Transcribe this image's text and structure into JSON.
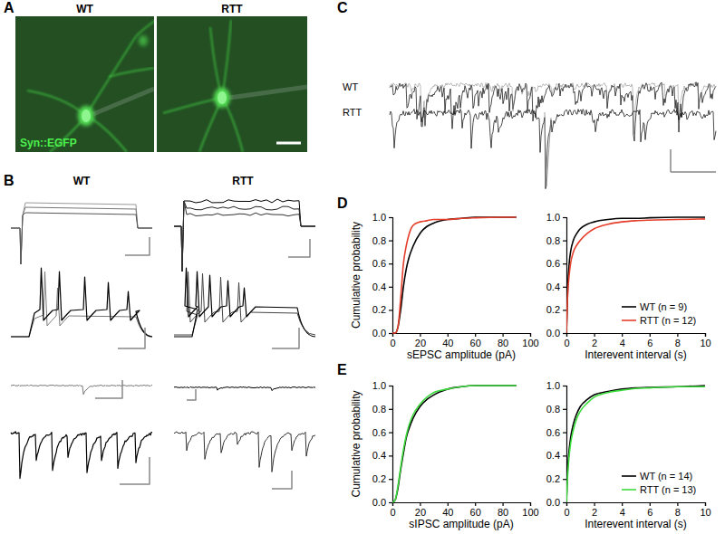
{
  "figure": {
    "panel_labels": [
      "A",
      "B",
      "C",
      "D",
      "E"
    ],
    "image_titles": [
      "WT",
      "RTT"
    ],
    "image_stain": "Syn::EGFP",
    "trace_columns": [
      "WT",
      "RTT"
    ],
    "trace_rows": [
      "WT",
      "RTT"
    ]
  },
  "chart_data": [
    {
      "type": "line",
      "x": [
        0,
        2,
        4,
        6,
        8,
        10,
        12,
        15,
        20,
        25,
        30,
        40,
        50,
        60,
        80,
        90
      ],
      "series": [
        {
          "color": "#000000",
          "values": [
            0,
            0,
            0.05,
            0.2,
            0.4,
            0.55,
            0.65,
            0.75,
            0.86,
            0.92,
            0.95,
            0.98,
            0.99,
            1,
            1,
            1
          ]
        },
        {
          "color": "#e53e2b",
          "values": [
            0,
            0,
            0.05,
            0.3,
            0.6,
            0.75,
            0.85,
            0.93,
            0.96,
            0.97,
            0.98,
            0.98,
            0.99,
            0.995,
            1,
            1
          ]
        }
      ],
      "xlim": [
        0,
        100
      ],
      "xticks": [
        0,
        20,
        40,
        60,
        80,
        100
      ],
      "ylim": [
        0,
        1
      ],
      "yticks": [
        {
          "value": 0,
          "label": "0.0"
        },
        0.2,
        0.4,
        0.6,
        0.8,
        {
          "value": 1,
          "label": "1.0"
        }
      ],
      "xlabel": "sEPSC amplitude (pA)",
      "ylabel": "Cumulative probability"
    },
    {
      "type": "line",
      "x": [
        0,
        0.1,
        0.2,
        0.3,
        0.5,
        0.75,
        1,
        1.5,
        2,
        3,
        4,
        5,
        6,
        8,
        10
      ],
      "series": [
        {
          "name": "WT (n = 9)",
          "color": "#000000",
          "values": [
            0,
            0.4,
            0.6,
            0.7,
            0.8,
            0.86,
            0.9,
            0.94,
            0.96,
            0.98,
            0.99,
            0.99,
            0.995,
            1,
            1
          ]
        },
        {
          "name": "RTT (n = 12)",
          "color": "#e53e2b",
          "values": [
            0,
            0.35,
            0.5,
            0.6,
            0.7,
            0.76,
            0.8,
            0.86,
            0.9,
            0.94,
            0.96,
            0.97,
            0.975,
            0.98,
            0.985
          ]
        }
      ],
      "xlim": [
        0,
        10
      ],
      "xticks": [
        0,
        2,
        4,
        6,
        8,
        10
      ],
      "ylim": [
        0,
        1
      ],
      "yticks": [
        {
          "value": 0,
          "label": "0.0"
        },
        0.2,
        0.4,
        0.6,
        0.8,
        {
          "value": 1,
          "label": "1.0"
        }
      ],
      "xlabel": "Interevent interval (s)",
      "legend": "lower right"
    },
    {
      "type": "line",
      "x": [
        0,
        2,
        4,
        6,
        8,
        10,
        12,
        15,
        20,
        25,
        30,
        40,
        50,
        60,
        80,
        90
      ],
      "series": [
        {
          "color": "#000000",
          "values": [
            0,
            0.02,
            0.12,
            0.28,
            0.42,
            0.55,
            0.63,
            0.72,
            0.82,
            0.88,
            0.92,
            0.97,
            0.99,
            1,
            1,
            1
          ]
        },
        {
          "color": "#3ddc3d",
          "values": [
            0,
            0.02,
            0.14,
            0.3,
            0.45,
            0.57,
            0.66,
            0.75,
            0.84,
            0.9,
            0.94,
            0.97,
            0.99,
            1,
            1,
            1
          ]
        }
      ],
      "xlim": [
        0,
        100
      ],
      "xticks": [
        0,
        20,
        40,
        60,
        80,
        100
      ],
      "ylim": [
        0,
        1
      ],
      "yticks": [
        {
          "value": 0,
          "label": "0.0"
        },
        0.2,
        0.4,
        0.6,
        0.8,
        {
          "value": 1,
          "label": "1.0"
        }
      ],
      "xlabel": "sIPSC amplitude (pA)",
      "ylabel": "Cumulative probability"
    },
    {
      "type": "line",
      "x": [
        0,
        0.1,
        0.2,
        0.3,
        0.5,
        0.75,
        1,
        1.5,
        2,
        3,
        4,
        5,
        6,
        8,
        10
      ],
      "series": [
        {
          "name": "WT (n = 14)",
          "color": "#000000",
          "values": [
            0,
            0.3,
            0.45,
            0.55,
            0.67,
            0.76,
            0.82,
            0.88,
            0.92,
            0.95,
            0.97,
            0.98,
            0.985,
            0.99,
            1
          ]
        },
        {
          "name": "RTT (n = 13)",
          "color": "#3ddc3d",
          "values": [
            0,
            0.25,
            0.4,
            0.5,
            0.62,
            0.72,
            0.78,
            0.85,
            0.9,
            0.94,
            0.96,
            0.975,
            0.98,
            0.99,
            0.99
          ]
        }
      ],
      "xlim": [
        0,
        10
      ],
      "xticks": [
        0,
        2,
        4,
        6,
        8,
        10
      ],
      "ylim": [
        0,
        1
      ],
      "yticks": [
        {
          "value": 0,
          "label": "0.0"
        },
        0.2,
        0.4,
        0.6,
        0.8,
        {
          "value": 1,
          "label": "1.0"
        }
      ],
      "xlabel": "Interevent interval (s)",
      "legend": "lower right"
    }
  ]
}
